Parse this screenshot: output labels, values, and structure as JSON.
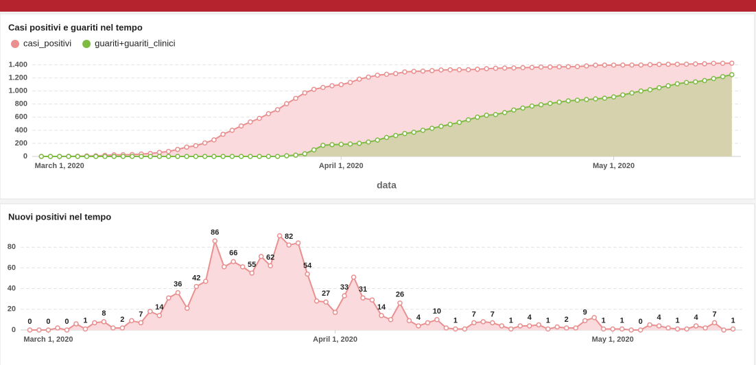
{
  "chart_data": [
    {
      "type": "line",
      "area": true,
      "title": "Casi positivi e guariti nel tempo",
      "xlabel": "data",
      "legend": "top-left",
      "grid": true,
      "x": [
        "2020-02-28",
        "2020-02-29",
        "2020-03-01",
        "2020-03-02",
        "2020-03-03",
        "2020-03-04",
        "2020-03-05",
        "2020-03-06",
        "2020-03-07",
        "2020-03-08",
        "2020-03-09",
        "2020-03-10",
        "2020-03-11",
        "2020-03-12",
        "2020-03-13",
        "2020-03-14",
        "2020-03-15",
        "2020-03-16",
        "2020-03-17",
        "2020-03-18",
        "2020-03-19",
        "2020-03-20",
        "2020-03-21",
        "2020-03-22",
        "2020-03-23",
        "2020-03-24",
        "2020-03-25",
        "2020-03-26",
        "2020-03-27",
        "2020-03-28",
        "2020-03-29",
        "2020-03-30",
        "2020-03-31",
        "2020-04-01",
        "2020-04-02",
        "2020-04-03",
        "2020-04-04",
        "2020-04-05",
        "2020-04-06",
        "2020-04-07",
        "2020-04-08",
        "2020-04-09",
        "2020-04-10",
        "2020-04-11",
        "2020-04-12",
        "2020-04-13",
        "2020-04-14",
        "2020-04-15",
        "2020-04-16",
        "2020-04-17",
        "2020-04-18",
        "2020-04-19",
        "2020-04-20",
        "2020-04-21",
        "2020-04-22",
        "2020-04-23",
        "2020-04-24",
        "2020-04-25",
        "2020-04-26",
        "2020-04-27",
        "2020-04-28",
        "2020-04-29",
        "2020-04-30",
        "2020-05-01",
        "2020-05-02",
        "2020-05-03",
        "2020-05-04",
        "2020-05-05",
        "2020-05-06",
        "2020-05-07",
        "2020-05-08",
        "2020-05-09",
        "2020-05-10",
        "2020-05-11",
        "2020-05-12",
        "2020-05-13",
        "2020-05-14"
      ],
      "series": [
        {
          "name": "casi_positivi",
          "color": "#e98f8f",
          "fill": "#fbdadd",
          "values": [
            0,
            0,
            0,
            2,
            2,
            8,
            9,
            16,
            24,
            26,
            28,
            37,
            44,
            62,
            76,
            107,
            143,
            164,
            206,
            253,
            339,
            400,
            466,
            527,
            582,
            653,
            715,
            806,
            888,
            972,
            1026,
            1054,
            1081,
            1098,
            1131,
            1182,
            1213,
            1242,
            1256,
            1266,
            1292,
            1301,
            1305,
            1312,
            1322,
            1324,
            1325,
            1326,
            1333,
            1341,
            1348,
            1352,
            1353,
            1357,
            1361,
            1366,
            1367,
            1370,
            1372,
            1374,
            1383,
            1395,
            1396,
            1397,
            1398,
            1398,
            1398,
            1403,
            1407,
            1409,
            1410,
            1411,
            1415,
            1417,
            1424,
            1424,
            1425
          ]
        },
        {
          "name": "guariti+guariti_clinici",
          "color": "#7dbb42",
          "fill": "#d6d2ad",
          "values": [
            0,
            0,
            0,
            0,
            0,
            0,
            0,
            0,
            0,
            0,
            0,
            0,
            0,
            0,
            0,
            0,
            0,
            0,
            0,
            0,
            0,
            0,
            0,
            0,
            0,
            0,
            0,
            10,
            20,
            40,
            100,
            170,
            180,
            185,
            190,
            200,
            220,
            250,
            290,
            320,
            350,
            370,
            400,
            430,
            460,
            490,
            520,
            560,
            600,
            630,
            640,
            670,
            710,
            740,
            770,
            790,
            810,
            830,
            850,
            860,
            870,
            880,
            890,
            910,
            940,
            970,
            1000,
            1020,
            1050,
            1080,
            1110,
            1130,
            1140,
            1160,
            1190,
            1220,
            1250
          ]
        }
      ],
      "xlim": [
        "2020-02-27",
        "2020-05-15"
      ],
      "xticks": [
        {
          "value": "2020-03-01",
          "label": "March 1, 2020"
        },
        {
          "value": "2020-04-01",
          "label": "April 1, 2020"
        },
        {
          "value": "2020-05-01",
          "label": "May 1, 2020"
        }
      ],
      "ylim": [
        0,
        1500
      ],
      "yticks": [
        0,
        200,
        400,
        600,
        800,
        {
          "value": 1000,
          "label": "1.000"
        },
        {
          "value": 1200,
          "label": "1.200"
        },
        {
          "value": 1400,
          "label": "1.400"
        }
      ]
    },
    {
      "type": "line",
      "area": true,
      "title": "Nuovi positivi nel tempo",
      "grid": true,
      "x": [
        "2020-02-28",
        "2020-02-29",
        "2020-03-01",
        "2020-03-02",
        "2020-03-03",
        "2020-03-04",
        "2020-03-05",
        "2020-03-06",
        "2020-03-07",
        "2020-03-08",
        "2020-03-09",
        "2020-03-10",
        "2020-03-11",
        "2020-03-12",
        "2020-03-13",
        "2020-03-14",
        "2020-03-15",
        "2020-03-16",
        "2020-03-17",
        "2020-03-18",
        "2020-03-19",
        "2020-03-20",
        "2020-03-21",
        "2020-03-22",
        "2020-03-23",
        "2020-03-24",
        "2020-03-25",
        "2020-03-26",
        "2020-03-27",
        "2020-03-28",
        "2020-03-29",
        "2020-03-30",
        "2020-03-31",
        "2020-04-01",
        "2020-04-02",
        "2020-04-03",
        "2020-04-04",
        "2020-04-05",
        "2020-04-06",
        "2020-04-07",
        "2020-04-08",
        "2020-04-09",
        "2020-04-10",
        "2020-04-11",
        "2020-04-12",
        "2020-04-13",
        "2020-04-14",
        "2020-04-15",
        "2020-04-16",
        "2020-04-17",
        "2020-04-18",
        "2020-04-19",
        "2020-04-20",
        "2020-04-21",
        "2020-04-22",
        "2020-04-23",
        "2020-04-24",
        "2020-04-25",
        "2020-04-26",
        "2020-04-27",
        "2020-04-28",
        "2020-04-29",
        "2020-04-30",
        "2020-05-01",
        "2020-05-02",
        "2020-05-03",
        "2020-05-04",
        "2020-05-05",
        "2020-05-06",
        "2020-05-07",
        "2020-05-08",
        "2020-05-09",
        "2020-05-10",
        "2020-05-11",
        "2020-05-12",
        "2020-05-13",
        "2020-05-14"
      ],
      "color": "#e98f8f",
      "fill": "#fbdadd",
      "values": [
        0,
        0,
        0,
        2,
        0,
        6,
        1,
        7,
        8,
        2,
        2,
        9,
        7,
        18,
        14,
        31,
        36,
        21,
        42,
        47,
        86,
        61,
        66,
        61,
        55,
        71,
        62,
        91,
        82,
        84,
        54,
        28,
        27,
        17,
        33,
        51,
        31,
        29,
        14,
        10,
        26,
        9,
        4,
        7,
        10,
        2,
        1,
        1,
        7,
        8,
        7,
        4,
        1,
        4,
        4,
        5,
        1,
        3,
        2,
        2,
        9,
        12,
        1,
        1,
        1,
        0,
        0,
        5,
        4,
        2,
        1,
        1,
        4,
        2,
        7,
        0,
        1
      ],
      "xlim": [
        "2020-02-27",
        "2020-05-15"
      ],
      "xticks": [
        {
          "value": "2020-03-01",
          "label": "March 1, 2020"
        },
        {
          "value": "2020-04-01",
          "label": "April 1, 2020"
        },
        {
          "value": "2020-05-01",
          "label": "May 1, 2020"
        }
      ],
      "ylim": [
        0,
        100
      ],
      "yticks": [
        0,
        20,
        40,
        60,
        80
      ]
    }
  ]
}
